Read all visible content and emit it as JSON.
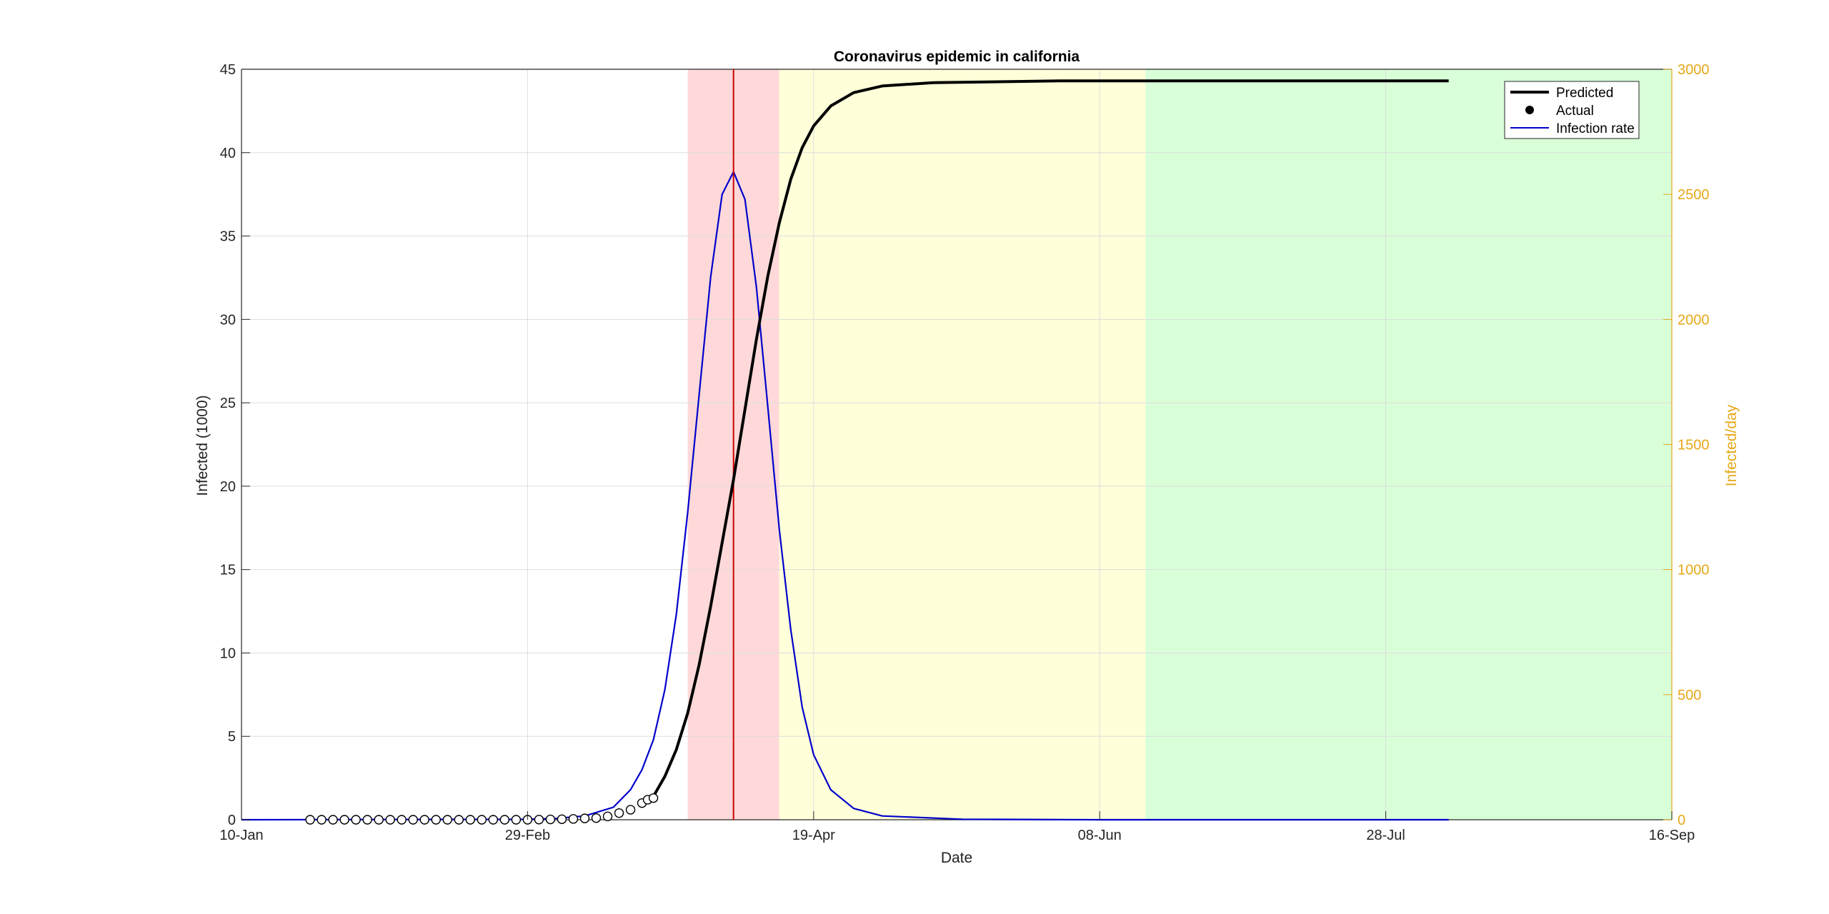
{
  "chart_data": {
    "type": "line",
    "title": "Coronavirus epidemic in california",
    "xlabel": "Date",
    "ylabel": "Infected (1000)",
    "y2label": "Infected/day",
    "x_axis_type": "date",
    "xlim": [
      "2020-01-10",
      "2020-09-16"
    ],
    "xticks": [
      {
        "date": "2020-01-10",
        "label": "10-Jan"
      },
      {
        "date": "2020-02-29",
        "label": "29-Feb"
      },
      {
        "date": "2020-04-19",
        "label": "19-Apr"
      },
      {
        "date": "2020-06-08",
        "label": "08-Jun"
      },
      {
        "date": "2020-07-28",
        "label": "28-Jul"
      },
      {
        "date": "2020-09-16",
        "label": "16-Sep"
      }
    ],
    "ylim": [
      0,
      45
    ],
    "yticks": [
      "0",
      "5",
      "10",
      "15",
      "20",
      "25",
      "30",
      "35",
      "40",
      "45"
    ],
    "y2lim": [
      0,
      3000
    ],
    "y2ticks": [
      "0",
      "500",
      "1000",
      "1500",
      "2000",
      "2500",
      "3000"
    ],
    "grid": true,
    "legend": "top-right",
    "legend_entries": [
      "Predicted",
      "Actual",
      "Infection rate"
    ],
    "colors": {
      "predicted": "#000000",
      "actual_marker_edge": "#000000",
      "infection_rate": "#0000cc",
      "right_axis": "#e6a817",
      "peak_line": "#cc0000",
      "phase_red": "#ffd9d9",
      "phase_yellow": "#ffffd9",
      "phase_green": "#d9ffd9"
    },
    "phases": [
      {
        "color": "red",
        "start": "2020-03-28",
        "end": "2020-04-13"
      },
      {
        "color": "yellow",
        "start": "2020-04-13",
        "end": "2020-06-16"
      },
      {
        "color": "green",
        "start": "2020-06-16",
        "end": "2020-09-16"
      }
    ],
    "peak_date": "2020-04-05",
    "series": [
      {
        "name": "Predicted",
        "axis": "left",
        "style": "line",
        "points": [
          [
            "2020-03-22",
            1.4
          ],
          [
            "2020-03-24",
            2.6
          ],
          [
            "2020-03-26",
            4.2
          ],
          [
            "2020-03-28",
            6.4
          ],
          [
            "2020-03-30",
            9.3
          ],
          [
            "2020-04-01",
            12.8
          ],
          [
            "2020-04-03",
            16.6
          ],
          [
            "2020-04-05",
            20.4
          ],
          [
            "2020-04-07",
            24.6
          ],
          [
            "2020-04-09",
            28.8
          ],
          [
            "2020-04-11",
            32.6
          ],
          [
            "2020-04-13",
            35.8
          ],
          [
            "2020-04-15",
            38.4
          ],
          [
            "2020-04-17",
            40.3
          ],
          [
            "2020-04-19",
            41.6
          ],
          [
            "2020-04-22",
            42.8
          ],
          [
            "2020-04-26",
            43.6
          ],
          [
            "2020-05-01",
            44.0
          ],
          [
            "2020-05-10",
            44.2
          ],
          [
            "2020-06-01",
            44.3
          ],
          [
            "2020-08-08",
            44.3
          ]
        ]
      },
      {
        "name": "Actual",
        "axis": "left",
        "style": "markers",
        "points": [
          [
            "2020-01-22",
            0.0
          ],
          [
            "2020-01-24",
            0.0
          ],
          [
            "2020-01-26",
            0.0
          ],
          [
            "2020-01-28",
            0.0
          ],
          [
            "2020-01-30",
            0.0
          ],
          [
            "2020-02-01",
            0.0
          ],
          [
            "2020-02-03",
            0.0
          ],
          [
            "2020-02-05",
            0.0
          ],
          [
            "2020-02-07",
            0.0
          ],
          [
            "2020-02-09",
            0.0
          ],
          [
            "2020-02-11",
            0.0
          ],
          [
            "2020-02-13",
            0.0
          ],
          [
            "2020-02-15",
            0.0
          ],
          [
            "2020-02-17",
            0.0
          ],
          [
            "2020-02-19",
            0.0
          ],
          [
            "2020-02-21",
            0.0
          ],
          [
            "2020-02-23",
            0.0
          ],
          [
            "2020-02-25",
            0.0
          ],
          [
            "2020-02-27",
            0.0
          ],
          [
            "2020-02-29",
            0.0
          ],
          [
            "2020-03-02",
            0.01
          ],
          [
            "2020-03-04",
            0.02
          ],
          [
            "2020-03-06",
            0.03
          ],
          [
            "2020-03-08",
            0.05
          ],
          [
            "2020-03-10",
            0.08
          ],
          [
            "2020-03-12",
            0.1
          ],
          [
            "2020-03-14",
            0.2
          ],
          [
            "2020-03-16",
            0.4
          ],
          [
            "2020-03-18",
            0.6
          ],
          [
            "2020-03-20",
            1.0
          ],
          [
            "2020-03-21",
            1.2
          ],
          [
            "2020-03-22",
            1.3
          ]
        ]
      },
      {
        "name": "Infection rate",
        "axis": "right",
        "style": "line",
        "points": [
          [
            "2020-01-10",
            0
          ],
          [
            "2020-02-29",
            2
          ],
          [
            "2020-03-05",
            5
          ],
          [
            "2020-03-10",
            15
          ],
          [
            "2020-03-15",
            50
          ],
          [
            "2020-03-18",
            120
          ],
          [
            "2020-03-20",
            200
          ],
          [
            "2020-03-22",
            320
          ],
          [
            "2020-03-24",
            520
          ],
          [
            "2020-03-26",
            820
          ],
          [
            "2020-03-28",
            1230
          ],
          [
            "2020-03-30",
            1700
          ],
          [
            "2020-04-01",
            2170
          ],
          [
            "2020-04-03",
            2500
          ],
          [
            "2020-04-05",
            2590
          ],
          [
            "2020-04-07",
            2480
          ],
          [
            "2020-04-09",
            2130
          ],
          [
            "2020-04-11",
            1650
          ],
          [
            "2020-04-13",
            1160
          ],
          [
            "2020-04-15",
            760
          ],
          [
            "2020-04-17",
            450
          ],
          [
            "2020-04-19",
            260
          ],
          [
            "2020-04-22",
            120
          ],
          [
            "2020-04-26",
            45
          ],
          [
            "2020-05-01",
            15
          ],
          [
            "2020-05-15",
            2
          ],
          [
            "2020-06-08",
            0
          ],
          [
            "2020-08-08",
            0
          ]
        ]
      }
    ]
  }
}
